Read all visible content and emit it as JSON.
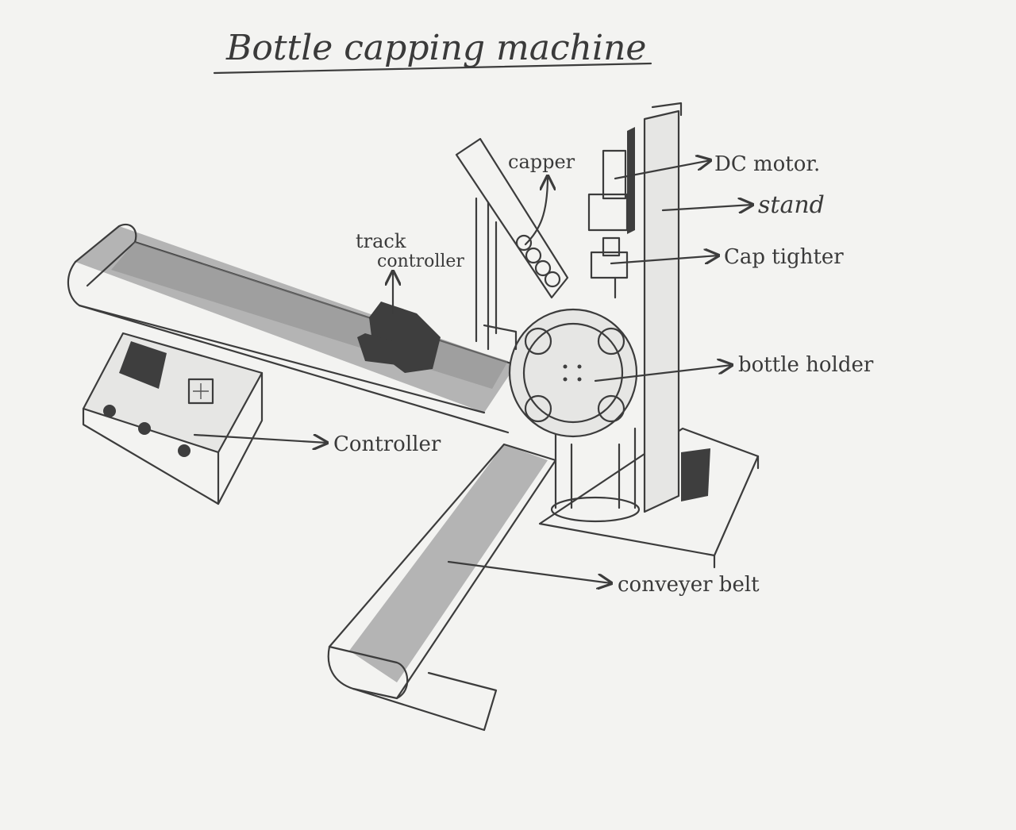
{
  "title": "Bottle capping machine",
  "labels": {
    "capper": "capper",
    "dc_motor": "DC motor.",
    "stand": "stand",
    "cap_tighter": "Cap tighter",
    "track_controller_line1": "track",
    "track_controller_line2": "controller",
    "bottle_holder": "bottle holder",
    "controller": "Controller",
    "conveyer_belt": "conveyer belt"
  },
  "colors": {
    "paper": "#f3f3f1",
    "pencil": "#3c3c3c",
    "graphite_shade": "#8a8a8a"
  }
}
